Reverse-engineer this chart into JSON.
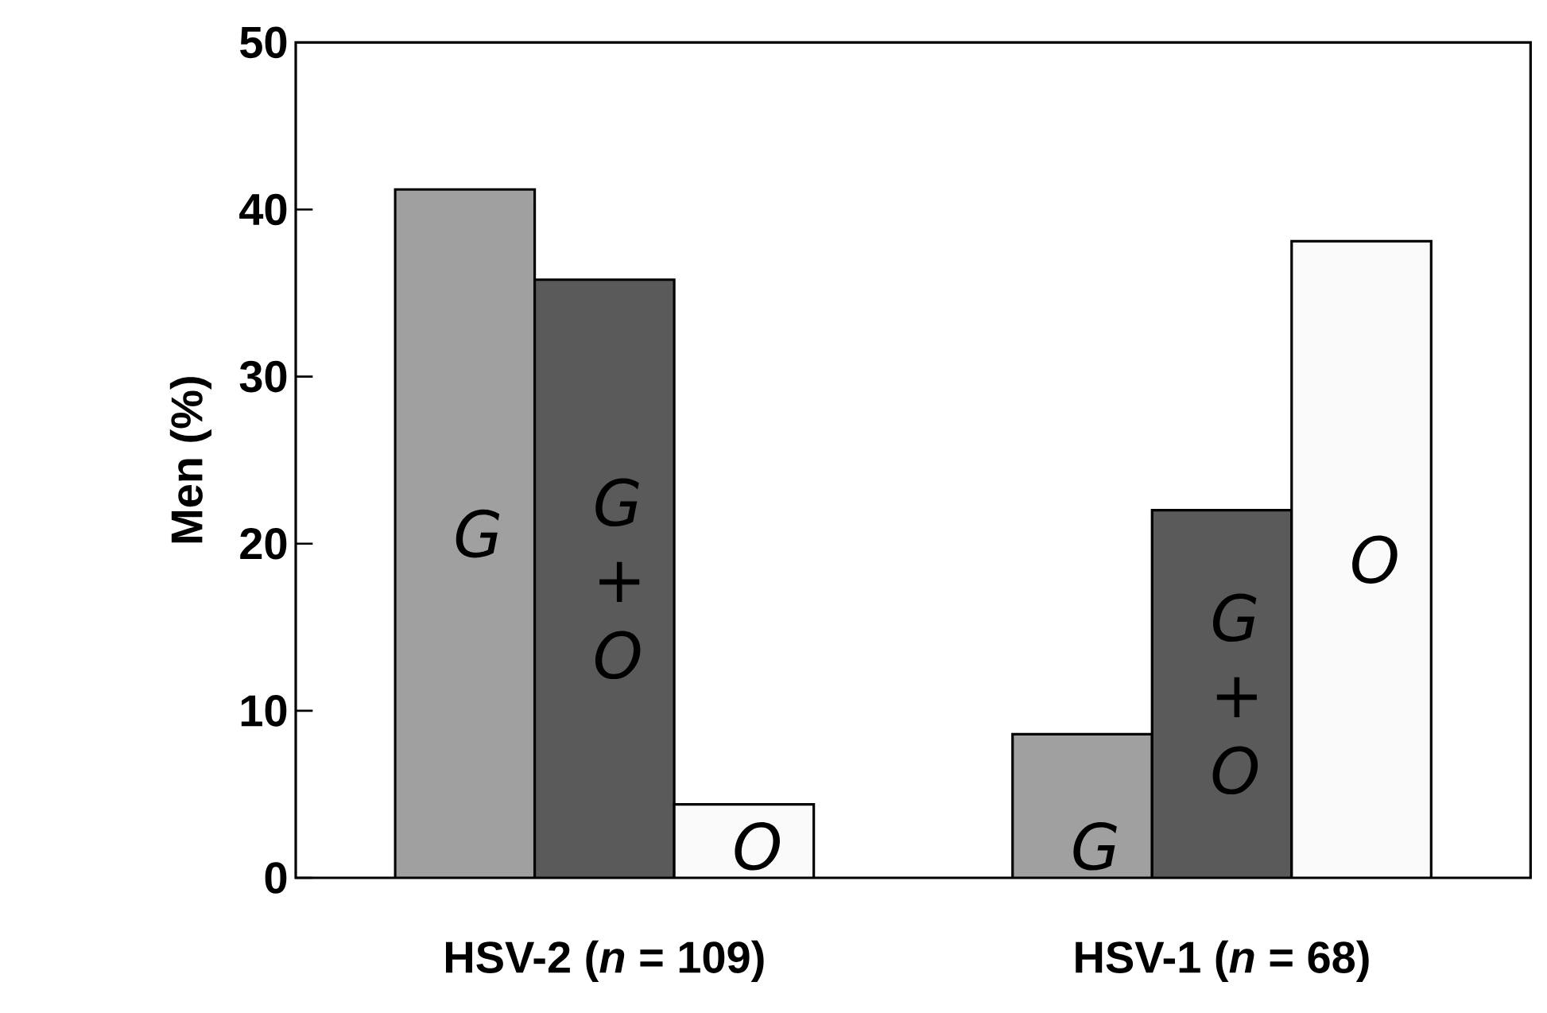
{
  "chart_data": {
    "type": "bar",
    "ylabel": "Men (%)",
    "categories": [
      "HSV-2  (*n* = 109)",
      "HSV-1  (*n* = 68)"
    ],
    "series": [
      {
        "name": "G",
        "color": "#a0a0a0",
        "values": [
          41.2,
          8.6
        ]
      },
      {
        "name": "G + O",
        "color": "#5a5a5a",
        "values": [
          35.8,
          22.0
        ]
      },
      {
        "name": "O",
        "color": "#fafafa",
        "values": [
          4.4,
          38.1
        ]
      }
    ],
    "ylim": [
      0,
      50
    ],
    "yticks": [
      0,
      10,
      20,
      30,
      40,
      50
    ],
    "grid": false,
    "legend": false
  }
}
